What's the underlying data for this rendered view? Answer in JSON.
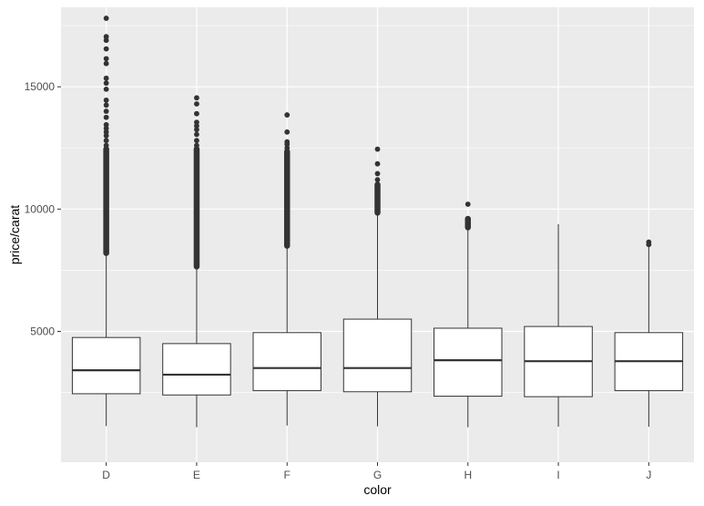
{
  "chart_data": {
    "type": "boxplot",
    "title": "",
    "xlabel": "color",
    "ylabel": "price/carat",
    "categories": [
      "D",
      "E",
      "F",
      "G",
      "H",
      "I",
      "J"
    ],
    "ylim": [
      -350,
      18250
    ],
    "yticks": [
      5000,
      10000,
      15000
    ],
    "ytick_labels": [
      "5000",
      "10000",
      "15000"
    ],
    "grid": true,
    "legend": "none",
    "colors": {
      "panel_background": "#EBEBEB",
      "major_grid": "#FFFFFF",
      "box_fill": "#FFFFFF",
      "box_line": "#333333",
      "outlier": "#333333",
      "tick_text": "#4D4D4D",
      "axis_title": "#000000"
    },
    "boxes": [
      {
        "category": "D",
        "whisker_low": 1130,
        "q1": 2450,
        "median": 3410,
        "q3": 4750,
        "whisker_high": 8200,
        "outliers": [
          17800,
          17050,
          16900,
          16550,
          16150,
          15950,
          15350,
          15150,
          14900,
          14450,
          14250,
          14000,
          13750,
          13450,
          13300,
          13150,
          13000,
          12800,
          12600,
          12450
        ]
      },
      {
        "category": "E",
        "whisker_low": 1080,
        "q1": 2400,
        "median": 3230,
        "q3": 4500,
        "whisker_high": 7650,
        "outliers": [
          14550,
          14300,
          13900,
          13550,
          13400,
          13250,
          13050,
          12800,
          12600,
          12450
        ]
      },
      {
        "category": "F",
        "whisker_low": 1150,
        "q1": 2580,
        "median": 3500,
        "q3": 4950,
        "whisker_high": 8500,
        "outliers": [
          13850,
          13150,
          12750,
          12650,
          12500,
          12350
        ]
      },
      {
        "category": "G",
        "whisker_low": 1120,
        "q1": 2530,
        "median": 3500,
        "q3": 5500,
        "whisker_high": 9850,
        "outliers": [
          12450,
          11850,
          11450,
          11200,
          11000
        ]
      },
      {
        "category": "H",
        "whisker_low": 1080,
        "q1": 2350,
        "median": 3820,
        "q3": 5130,
        "whisker_high": 9250,
        "outliers": [
          10200,
          9600,
          9450
        ]
      },
      {
        "category": "I",
        "whisker_low": 1100,
        "q1": 2330,
        "median": 3780,
        "q3": 5200,
        "whisker_high": 9380,
        "outliers": []
      },
      {
        "category": "J",
        "whisker_low": 1100,
        "q1": 2580,
        "median": 3780,
        "q3": 4950,
        "whisker_high": 8500,
        "outliers": [
          8650,
          8550
        ]
      }
    ],
    "dense_outlier_ranges": [
      {
        "category": "D",
        "from": 8200,
        "to": 12450
      },
      {
        "category": "E",
        "from": 7650,
        "to": 12450
      },
      {
        "category": "F",
        "from": 8500,
        "to": 12350
      },
      {
        "category": "G",
        "from": 9850,
        "to": 11000
      },
      {
        "category": "H",
        "from": 9250,
        "to": 9600
      }
    ]
  }
}
